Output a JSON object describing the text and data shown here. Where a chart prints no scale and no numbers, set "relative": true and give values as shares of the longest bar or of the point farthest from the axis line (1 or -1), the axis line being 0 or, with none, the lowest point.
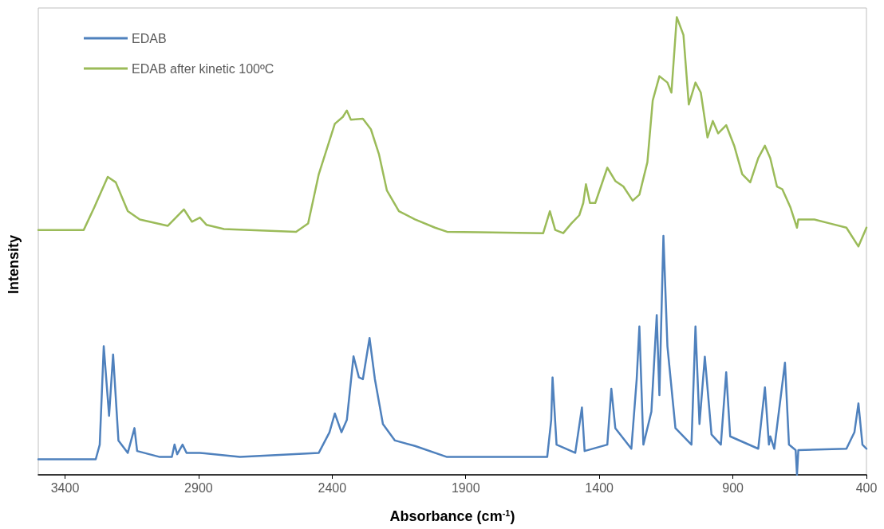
{
  "chart_data": {
    "type": "line",
    "relative": true,
    "xlabel": "Absorbance (cm$^{-1}$)",
    "ylabel": "Intensity",
    "xlim": [
      3500,
      400
    ],
    "xticks": [
      3400,
      2900,
      2400,
      1900,
      1400,
      900,
      400
    ],
    "grid": false,
    "legend": "top left",
    "marker": "none",
    "line_style": "solid",
    "series": [
      {
        "name": "EDAB",
        "color": "#4f81bd",
        "x": [
          3500,
          3405,
          3285,
          3270,
          3255,
          3235,
          3220,
          3200,
          3165,
          3140,
          3130,
          3045,
          3000,
          2990,
          2980,
          2960,
          2945,
          2895,
          2745,
          2450,
          2410,
          2390,
          2365,
          2345,
          2320,
          2300,
          2285,
          2260,
          2240,
          2210,
          2165,
          2090,
          1970,
          1700,
          1595,
          1580,
          1575,
          1560,
          1490,
          1465,
          1455,
          1370,
          1355,
          1340,
          1280,
          1260,
          1250,
          1235,
          1205,
          1185,
          1175,
          1160,
          1145,
          1115,
          1055,
          1040,
          1025,
          1005,
          980,
          945,
          925,
          910,
          805,
          780,
          765,
          760,
          745,
          705,
          690,
          665,
          660,
          655,
          475,
          445,
          430,
          415,
          400
        ],
        "values": [
          0.034,
          0.034,
          0.034,
          0.066,
          0.281,
          0.129,
          0.263,
          0.075,
          0.048,
          0.102,
          0.052,
          0.039,
          0.039,
          0.066,
          0.045,
          0.066,
          0.048,
          0.048,
          0.039,
          0.048,
          0.093,
          0.134,
          0.093,
          0.12,
          0.259,
          0.213,
          0.209,
          0.299,
          0.209,
          0.111,
          0.075,
          0.063,
          0.039,
          0.039,
          0.039,
          0.12,
          0.213,
          0.066,
          0.048,
          0.147,
          0.052,
          0.066,
          0.188,
          0.102,
          0.057,
          0.209,
          0.324,
          0.066,
          0.138,
          0.349,
          0.174,
          0.522,
          0.281,
          0.102,
          0.066,
          0.324,
          0.111,
          0.258,
          0.088,
          0.066,
          0.224,
          0.084,
          0.057,
          0.191,
          0.066,
          0.084,
          0.057,
          0.245,
          0.066,
          0.054,
          0,
          0.054,
          0.057,
          0.093,
          0.156,
          0.066,
          0.057
        ]
      },
      {
        "name": "EDAB after kinetic 100ºC",
        "color": "#9bbb59",
        "x": [
          3500,
          3330,
          3290,
          3240,
          3210,
          3165,
          3120,
          3015,
          2955,
          2925,
          2895,
          2870,
          2805,
          2535,
          2490,
          2450,
          2390,
          2360,
          2345,
          2330,
          2285,
          2255,
          2225,
          2195,
          2150,
          2090,
          2015,
          1970,
          1850,
          1610,
          1585,
          1565,
          1535,
          1505,
          1475,
          1460,
          1450,
          1435,
          1415,
          1370,
          1340,
          1310,
          1275,
          1250,
          1220,
          1200,
          1175,
          1145,
          1130,
          1110,
          1085,
          1065,
          1040,
          1020,
          995,
          975,
          955,
          925,
          895,
          865,
          835,
          805,
          780,
          760,
          735,
          715,
          685,
          660,
          655,
          595,
          535,
          475,
          430,
          400
        ],
        "values": [
          0.535,
          0.535,
          0.585,
          0.651,
          0.639,
          0.576,
          0.558,
          0.544,
          0.58,
          0.553,
          0.562,
          0.546,
          0.537,
          0.531,
          0.549,
          0.657,
          0.767,
          0.782,
          0.796,
          0.776,
          0.778,
          0.755,
          0.701,
          0.621,
          0.576,
          0.558,
          0.54,
          0.531,
          0.53,
          0.528,
          0.576,
          0.535,
          0.528,
          0.549,
          0.567,
          0.594,
          0.635,
          0.594,
          0.594,
          0.671,
          0.642,
          0.63,
          0.599,
          0.612,
          0.683,
          0.818,
          0.871,
          0.857,
          0.835,
          1,
          0.961,
          0.809,
          0.857,
          0.835,
          0.737,
          0.773,
          0.746,
          0.764,
          0.719,
          0.657,
          0.639,
          0.692,
          0.719,
          0.692,
          0.63,
          0.624,
          0.585,
          0.54,
          0.558,
          0.558,
          0.549,
          0.54,
          0.499,
          0.54
        ]
      }
    ]
  }
}
